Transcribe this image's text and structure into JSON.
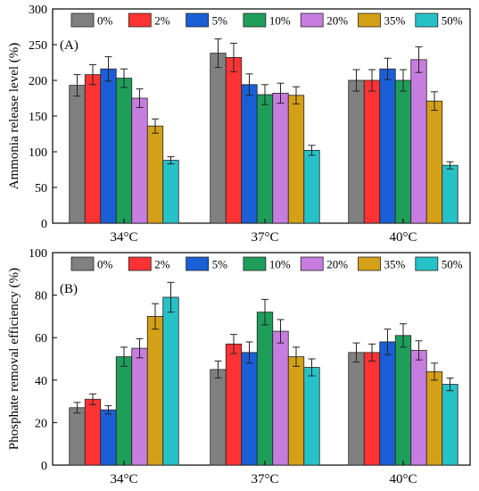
{
  "colors": [
    "#808080",
    "#ff3333",
    "#1a5fd6",
    "#1f9e5a",
    "#c77ddf",
    "#d4a017",
    "#27c2c8"
  ],
  "chart_data": [
    {
      "type": "bar",
      "panel_label": "(A)",
      "ylabel": "Ammonia release level (%)",
      "xlabel": "",
      "ylim": [
        0,
        300
      ],
      "yticks": [
        "0",
        "50",
        "100",
        "150",
        "200",
        "250",
        "300"
      ],
      "categories": [
        "34°C",
        "37°C",
        "40°C"
      ],
      "legend_position": "top",
      "series": [
        {
          "name": "0%",
          "values": [
            193,
            238,
            200
          ],
          "errors": [
            15,
            20,
            15
          ]
        },
        {
          "name": "2%",
          "values": [
            208,
            232,
            200
          ],
          "errors": [
            14,
            20,
            15
          ]
        },
        {
          "name": "5%",
          "values": [
            216,
            194,
            216
          ],
          "errors": [
            17,
            15,
            15
          ]
        },
        {
          "name": "10%",
          "values": [
            203,
            180,
            200
          ],
          "errors": [
            13,
            14,
            15
          ]
        },
        {
          "name": "20%",
          "values": [
            175,
            182,
            229
          ],
          "errors": [
            13,
            14,
            18
          ]
        },
        {
          "name": "35%",
          "values": [
            136,
            179,
            171
          ],
          "errors": [
            10,
            12,
            13
          ]
        },
        {
          "name": "50%",
          "values": [
            88,
            102,
            81
          ],
          "errors": [
            5,
            7,
            5
          ]
        }
      ]
    },
    {
      "type": "bar",
      "panel_label": "(B)",
      "ylabel": "Phosphate removal efficiency (%)",
      "xlabel": "",
      "ylim": [
        0,
        100
      ],
      "yticks": [
        "0",
        "20",
        "40",
        "60",
        "80",
        "100"
      ],
      "categories": [
        "34°C",
        "37°C",
        "40°C"
      ],
      "legend_position": "top",
      "series": [
        {
          "name": "0%",
          "values": [
            27,
            45,
            53
          ],
          "errors": [
            2.5,
            4,
            4.5
          ]
        },
        {
          "name": "2%",
          "values": [
            31,
            57,
            53
          ],
          "errors": [
            2.5,
            4.5,
            4
          ]
        },
        {
          "name": "5%",
          "values": [
            26,
            53,
            58
          ],
          "errors": [
            2,
            5,
            6
          ]
        },
        {
          "name": "10%",
          "values": [
            51,
            72,
            61
          ],
          "errors": [
            4.5,
            6,
            5.5
          ]
        },
        {
          "name": "20%",
          "values": [
            55,
            63,
            54
          ],
          "errors": [
            4.5,
            5.5,
            4.5
          ]
        },
        {
          "name": "35%",
          "values": [
            70,
            51,
            44
          ],
          "errors": [
            6,
            4.5,
            4
          ]
        },
        {
          "name": "50%",
          "values": [
            79,
            46,
            38
          ],
          "errors": [
            7,
            4,
            3
          ]
        }
      ]
    }
  ]
}
